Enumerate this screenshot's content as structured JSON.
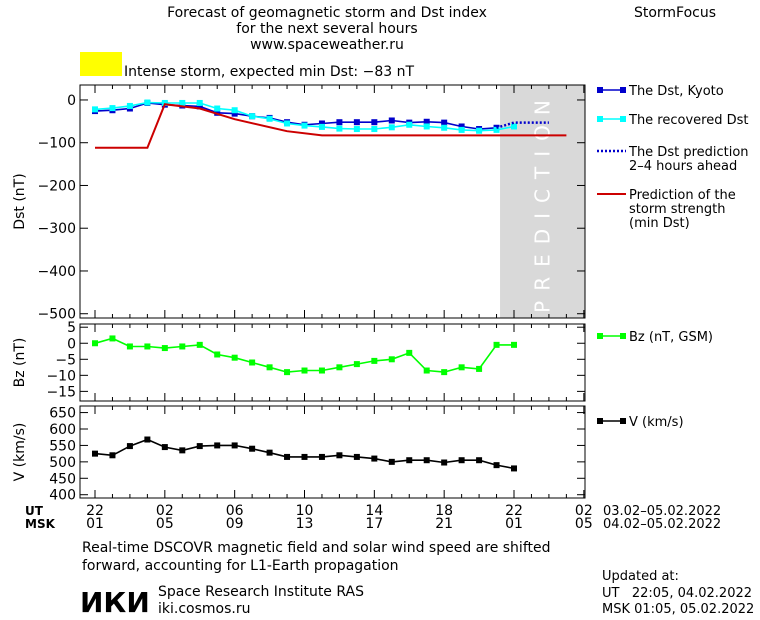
{
  "header": {
    "title_lines": [
      "Forecast of geomagnetic storm and Dst index",
      "for the next several hours",
      "www.spaceweather.ru"
    ],
    "brand": "StormFocus",
    "status_text": "Intense storm, expected min Dst: −83 nT",
    "status_color": "#ffff00"
  },
  "footer": {
    "note_lines": [
      "Real-time DSCOVR magnetic field and solar wind speed are shifted",
      "forward, accounting for L1-Earth propagation"
    ],
    "logo_text": "ИКИ",
    "institute": "Space Research Institute RAS",
    "website": "iki.cosmos.ru",
    "updated_label": "Updated at:",
    "updated_ut": "UT   22:05, 04.02.2022",
    "updated_msk": "MSK 01:05, 05.02.2022"
  },
  "time_axis": {
    "ut_label": "UT",
    "msk_label": "MSK",
    "ut_ticks": [
      "22",
      "02",
      "06",
      "10",
      "14",
      "18",
      "22",
      "02"
    ],
    "msk_ticks": [
      "01",
      "05",
      "09",
      "13",
      "17",
      "21",
      "01",
      "05"
    ],
    "ut_range": "03.02–05.02.2022",
    "msk_range": "04.02–05.02.2022"
  },
  "chart_data": [
    {
      "type": "line",
      "ylabel": "Dst (nT)",
      "ylim": [
        -510,
        35
      ],
      "yticks": [
        0,
        -100,
        -200,
        -300,
        -400,
        -500
      ],
      "xlim": [
        0,
        27
      ],
      "shaded_region": {
        "x": [
          23.2,
          27
        ],
        "label": "PREDICTION",
        "color": "#d9d9d9"
      },
      "series": [
        {
          "name": "The Dst, Kyoto",
          "color": "#0000cc",
          "style": "solid-square",
          "x": [
            0,
            1,
            2,
            3,
            4,
            5,
            6,
            7,
            8,
            9,
            10,
            11,
            12,
            13,
            14,
            15,
            16,
            17,
            18,
            19,
            20,
            21,
            22,
            23
          ],
          "y": [
            -26,
            -24,
            -20,
            -7,
            -11,
            -13,
            -15,
            -30,
            -32,
            -38,
            -42,
            -52,
            -58,
            -55,
            -52,
            -52,
            -52,
            -48,
            -53,
            -51,
            -53,
            -62,
            -68,
            -65
          ]
        },
        {
          "name": "The recovered Dst",
          "color": "#00ffff",
          "style": "solid-square",
          "x": [
            0,
            1,
            2,
            3,
            4,
            5,
            6,
            7,
            8,
            9,
            10,
            11,
            12,
            13,
            14,
            15,
            16,
            17,
            18,
            19,
            20,
            21,
            22,
            23,
            24
          ],
          "y": [
            -22,
            -19,
            -14,
            -6,
            -7,
            -7,
            -7,
            -20,
            -24,
            -38,
            -44,
            -55,
            -60,
            -63,
            -67,
            -68,
            -68,
            -64,
            -58,
            -62,
            -65,
            -70,
            -72,
            -70,
            -62
          ]
        },
        {
          "name": "The Dst prediction\n2–4 hours ahead",
          "color": "#0000cc",
          "style": "dotted",
          "x": [
            23,
            24,
            25,
            26
          ],
          "y": [
            -65,
            -53,
            -53,
            -53
          ]
        },
        {
          "name": "Prediction of the\nstorm strength\n(min Dst)",
          "color": "#cc0000",
          "style": "solid",
          "x": [
            0,
            3,
            4,
            6,
            8,
            11,
            13,
            27
          ],
          "y": [
            -112,
            -112,
            -10,
            -20,
            -45,
            -73,
            -83,
            -83
          ]
        }
      ]
    },
    {
      "type": "line",
      "ylabel": "Bz (nT)",
      "ylim": [
        -18,
        6
      ],
      "yticks": [
        5,
        0,
        -5,
        -10,
        -15
      ],
      "xlim": [
        0,
        27
      ],
      "series": [
        {
          "name": "Bz (nT, GSM)",
          "color": "#00ff00",
          "style": "solid-square",
          "x": [
            0,
            1,
            2,
            3,
            4,
            5,
            6,
            7,
            8,
            9,
            10,
            11,
            12,
            13,
            14,
            15,
            16,
            17,
            18,
            19,
            20,
            21,
            22,
            23,
            24
          ],
          "y": [
            0,
            1.5,
            -1,
            -1,
            -1.5,
            -1,
            -0.5,
            -3.5,
            -4.5,
            -6,
            -7.5,
            -9,
            -8.5,
            -8.5,
            -7.5,
            -6.5,
            -5.5,
            -5,
            -3,
            -8.5,
            -9,
            -7.5,
            -8,
            -0.5,
            -0.5
          ]
        }
      ]
    },
    {
      "type": "line",
      "ylabel": "V (km/s)",
      "ylim": [
        390,
        670
      ],
      "yticks": [
        650,
        600,
        550,
        500,
        450,
        400
      ],
      "xlim": [
        0,
        27
      ],
      "series": [
        {
          "name": "V (km/s)",
          "color": "#000000",
          "style": "solid-square",
          "x": [
            0,
            1,
            2,
            3,
            4,
            5,
            6,
            7,
            8,
            9,
            10,
            11,
            12,
            13,
            14,
            15,
            16,
            17,
            18,
            19,
            20,
            21,
            22,
            23,
            24
          ],
          "y": [
            525,
            520,
            548,
            568,
            545,
            535,
            548,
            550,
            550,
            540,
            528,
            515,
            515,
            515,
            520,
            515,
            510,
            500,
            505,
            505,
            498,
            505,
            505,
            490,
            480
          ]
        }
      ]
    }
  ]
}
